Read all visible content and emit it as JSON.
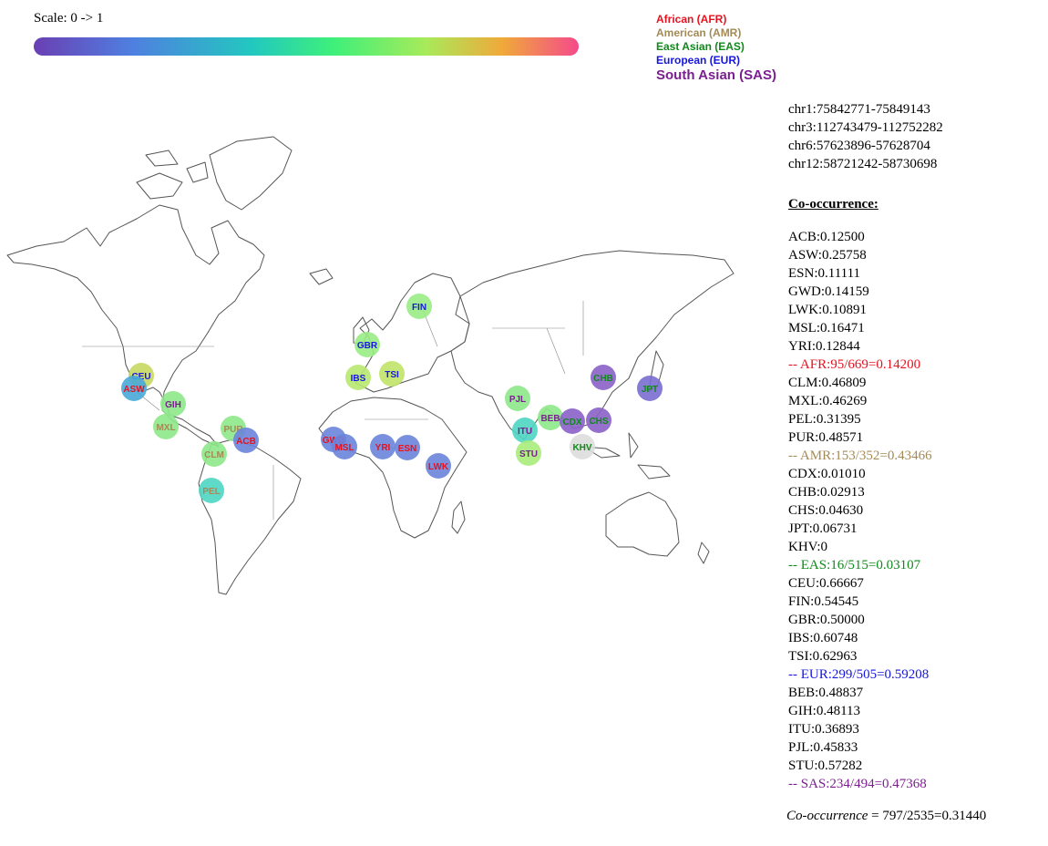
{
  "scale": {
    "label": "Scale: 0 -> 1"
  },
  "legend": [
    {
      "label": "African (AFR)",
      "color": "#e8121f"
    },
    {
      "label": "American (AMR)",
      "color": "#a48a55"
    },
    {
      "label": "East Asian (EAS)",
      "color": "#0f8a1a"
    },
    {
      "label": "European (EUR)",
      "color": "#1616e0"
    },
    {
      "label": "South Asian (SAS)",
      "color": "#7a1f8f"
    }
  ],
  "regions": [
    "chr1:75842771-75849143",
    "chr3:112743479-112752282",
    "chr6:57623896-57628704",
    "chr12:58721242-58730698"
  ],
  "cooccurrence_heading": "Co-occurrence:",
  "populations": [
    {
      "text": "ACB:0.12500",
      "color": "#000000"
    },
    {
      "text": "ASW:0.25758",
      "color": "#000000"
    },
    {
      "text": "ESN:0.11111",
      "color": "#000000"
    },
    {
      "text": "GWD:0.14159",
      "color": "#000000"
    },
    {
      "text": "LWK:0.10891",
      "color": "#000000"
    },
    {
      "text": "MSL:0.16471",
      "color": "#000000"
    },
    {
      "text": "YRI:0.12844",
      "color": "#000000"
    },
    {
      "text": "-- AFR:95/669=0.14200",
      "color": "#e8121f"
    },
    {
      "text": "CLM:0.46809",
      "color": "#000000"
    },
    {
      "text": "MXL:0.46269",
      "color": "#000000"
    },
    {
      "text": "PEL:0.31395",
      "color": "#000000"
    },
    {
      "text": "PUR:0.48571",
      "color": "#000000"
    },
    {
      "text": "-- AMR:153/352=0.43466",
      "color": "#a48a55"
    },
    {
      "text": "CDX:0.01010",
      "color": "#000000"
    },
    {
      "text": "CHB:0.02913",
      "color": "#000000"
    },
    {
      "text": "CHS:0.04630",
      "color": "#000000"
    },
    {
      "text": "JPT:0.06731",
      "color": "#000000"
    },
    {
      "text": "KHV:0",
      "color": "#000000"
    },
    {
      "text": "-- EAS:16/515=0.03107",
      "color": "#0f8a1a"
    },
    {
      "text": "CEU:0.66667",
      "color": "#000000"
    },
    {
      "text": "FIN:0.54545",
      "color": "#000000"
    },
    {
      "text": "GBR:0.50000",
      "color": "#000000"
    },
    {
      "text": "IBS:0.60748",
      "color": "#000000"
    },
    {
      "text": "TSI:0.62963",
      "color": "#000000"
    },
    {
      "text": "-- EUR:299/505=0.59208",
      "color": "#1616e0"
    },
    {
      "text": "BEB:0.48837",
      "color": "#000000"
    },
    {
      "text": "GIH:0.48113",
      "color": "#000000"
    },
    {
      "text": "ITU:0.36893",
      "color": "#000000"
    },
    {
      "text": "PJL:0.45833",
      "color": "#000000"
    },
    {
      "text": "STU:0.57282",
      "color": "#000000"
    },
    {
      "text": "-- SAS:234/494=0.47368",
      "color": "#7a1f8f"
    }
  ],
  "total": {
    "label": "Co-occurrence",
    "value": " = 797/2535=0.31440"
  },
  "markers": [
    {
      "code": "CEU",
      "value": 0.66667,
      "fill": "#c8d860",
      "text_color": "#1616e0"
    },
    {
      "code": "ASW",
      "value": 0.25758,
      "fill": "#48a8d8",
      "text_color": "#e8121f"
    },
    {
      "code": "GIH",
      "value": 0.48113,
      "fill": "#8ee88a",
      "text_color": "#7a1f8f"
    },
    {
      "code": "MXL",
      "value": 0.46269,
      "fill": "#8ee88a",
      "text_color": "#a48a55"
    },
    {
      "code": "PUR",
      "value": 0.48571,
      "fill": "#8ee88a",
      "text_color": "#a48a55"
    },
    {
      "code": "ACB",
      "value": 0.125,
      "fill": "#6a84dc",
      "text_color": "#e8121f"
    },
    {
      "code": "CLM",
      "value": 0.46809,
      "fill": "#8ee88a",
      "text_color": "#a48a55"
    },
    {
      "code": "PEL",
      "value": 0.31395,
      "fill": "#4fd6c2",
      "text_color": "#a48a55"
    },
    {
      "code": "GBR",
      "value": 0.5,
      "fill": "#9aec86",
      "text_color": "#1616e0"
    },
    {
      "code": "FIN",
      "value": 0.54545,
      "fill": "#9aec86",
      "text_color": "#1616e0"
    },
    {
      "code": "IBS",
      "value": 0.60748,
      "fill": "#b8e870",
      "text_color": "#1616e0"
    },
    {
      "code": "TSI",
      "value": 0.62963,
      "fill": "#c0e468",
      "text_color": "#1616e0"
    },
    {
      "code": "GWD",
      "value": 0.14159,
      "fill": "#6a84dc",
      "text_color": "#e8121f"
    },
    {
      "code": "MSL",
      "value": 0.16471,
      "fill": "#6a84dc",
      "text_color": "#e8121f"
    },
    {
      "code": "YRI",
      "value": 0.12844,
      "fill": "#6a84dc",
      "text_color": "#e8121f"
    },
    {
      "code": "ESN",
      "value": 0.11111,
      "fill": "#6a84dc",
      "text_color": "#e8121f"
    },
    {
      "code": "LWK",
      "value": 0.10891,
      "fill": "#6a84dc",
      "text_color": "#e8121f"
    },
    {
      "code": "PJL",
      "value": 0.45833,
      "fill": "#8ee88a",
      "text_color": "#7a1f8f"
    },
    {
      "code": "BEB",
      "value": 0.48837,
      "fill": "#8ee88a",
      "text_color": "#7a1f8f"
    },
    {
      "code": "ITU",
      "value": 0.36893,
      "fill": "#4fd6c2",
      "text_color": "#7a1f8f"
    },
    {
      "code": "STU",
      "value": 0.57282,
      "fill": "#a8ec7a",
      "text_color": "#7a1f8f"
    },
    {
      "code": "CDX",
      "value": 0.0101,
      "fill": "#8a62c8",
      "text_color": "#0f8a1a"
    },
    {
      "code": "CHS",
      "value": 0.0463,
      "fill": "#8a62c8",
      "text_color": "#0f8a1a"
    },
    {
      "code": "CHB",
      "value": 0.02913,
      "fill": "#8a62c8",
      "text_color": "#0f8a1a"
    },
    {
      "code": "JPT",
      "value": 0.06731,
      "fill": "#7a6ed0",
      "text_color": "#0f8a1a"
    },
    {
      "code": "KHV",
      "value": 0,
      "fill": "#dddddd",
      "text_color": "#0f8a1a"
    }
  ]
}
